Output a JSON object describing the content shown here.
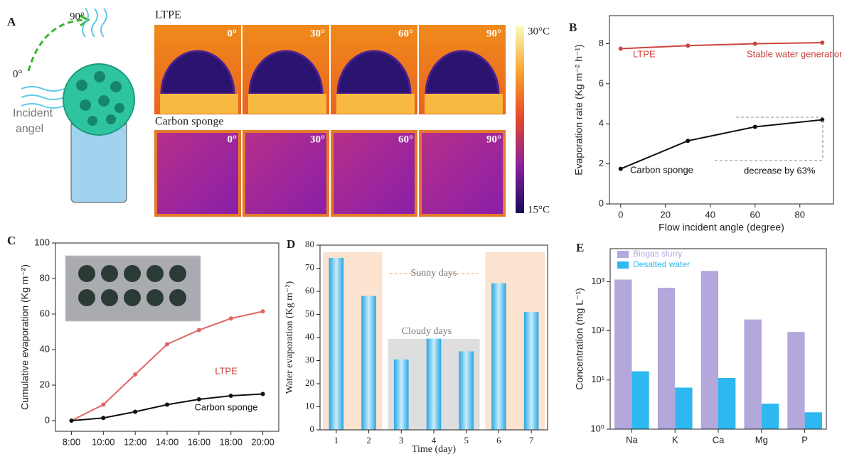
{
  "panel_a": {
    "label": "A",
    "top_row_label": "LTPE",
    "bottom_row_label": "Carbon sponge",
    "angles": [
      "0°",
      "30°",
      "60°",
      "90°"
    ],
    "colorbar_labels": [
      "30°C",
      "15°C"
    ],
    "diagram_angles": [
      "90°",
      "0°"
    ],
    "incident_label": [
      "Incident",
      "angel"
    ]
  },
  "chart_data": [
    {
      "type": "line",
      "panel": "B",
      "x": [
        0,
        30,
        60,
        90
      ],
      "xlim": [
        -5,
        95
      ],
      "xticks": [
        0,
        20,
        40,
        60,
        80
      ],
      "ylim": [
        0,
        9.4
      ],
      "yticks": [
        0,
        2,
        4,
        6,
        8
      ],
      "xlabel": "Flow incident angle (degree)",
      "ylabel": "Evaporation rate (Kg m⁻² h⁻¹)",
      "series": [
        {
          "name": "LTPE",
          "color": "#c9453f",
          "values": [
            7.75,
            7.9,
            8.0,
            8.05
          ]
        },
        {
          "name": "Carbon sponge",
          "color": "#111111",
          "values": [
            1.75,
            3.15,
            3.85,
            4.2
          ]
        }
      ],
      "annotations": [
        "LTPE",
        "Stable water generation",
        "Carbon sponge",
        "decrease by 63%"
      ]
    },
    {
      "type": "line",
      "panel": "C",
      "categories": [
        "8:00",
        "10:00",
        "12:00",
        "14:00",
        "16:00",
        "18:00",
        "20:00"
      ],
      "ylim": [
        -6,
        100
      ],
      "yticks": [
        0,
        20,
        40,
        60,
        80,
        100
      ],
      "ylabel": "Cumulative evaporation (Kg m⁻²)",
      "series": [
        {
          "name": "LTPE",
          "color": "#e06666",
          "values": [
            0,
            9,
            26,
            43,
            51,
            57.5,
            61.5
          ]
        },
        {
          "name": "Carbon sponge",
          "color": "#111111",
          "values": [
            0,
            1.5,
            5,
            9,
            12,
            14,
            15
          ]
        }
      ],
      "annotations": [
        "LTPE",
        "Carbon sponge"
      ]
    },
    {
      "type": "bar",
      "panel": "D",
      "categories": [
        "1",
        "2",
        "3",
        "4",
        "5",
        "6",
        "7"
      ],
      "values": [
        74.5,
        58,
        30.5,
        39.5,
        34,
        63.5,
        51
      ],
      "color": "#5fc4f0",
      "ylim": [
        0,
        80
      ],
      "yticks": [
        0,
        10,
        20,
        30,
        40,
        50,
        60,
        70,
        80
      ],
      "xlabel": "Time (day)",
      "ylabel": "Water evaporation (Kg m⁻²)",
      "annotations": [
        "Sunny days",
        "Cloudy days"
      ]
    },
    {
      "type": "bar",
      "panel": "E",
      "categories": [
        "Na",
        "K",
        "Ca",
        "Mg",
        "P"
      ],
      "log_scale": true,
      "ylim": [
        1,
        4677
      ],
      "yticks": [
        {
          "value": 1,
          "label": "10⁰"
        },
        {
          "value": 10,
          "label": "10¹"
        },
        {
          "value": 100,
          "label": "10²"
        },
        {
          "value": 1000,
          "label": "10³"
        }
      ],
      "ylabel": "Concentration (mg L⁻¹)",
      "legend": "upper left",
      "series": [
        {
          "name": "Biogas slurry",
          "color": "#b3a7dc",
          "values": [
            1100,
            750,
            1650,
            170,
            95
          ]
        },
        {
          "name": "Desalted water",
          "color": "#2db8f0",
          "values": [
            15,
            7,
            11,
            3.3,
            2.2
          ]
        }
      ]
    }
  ]
}
